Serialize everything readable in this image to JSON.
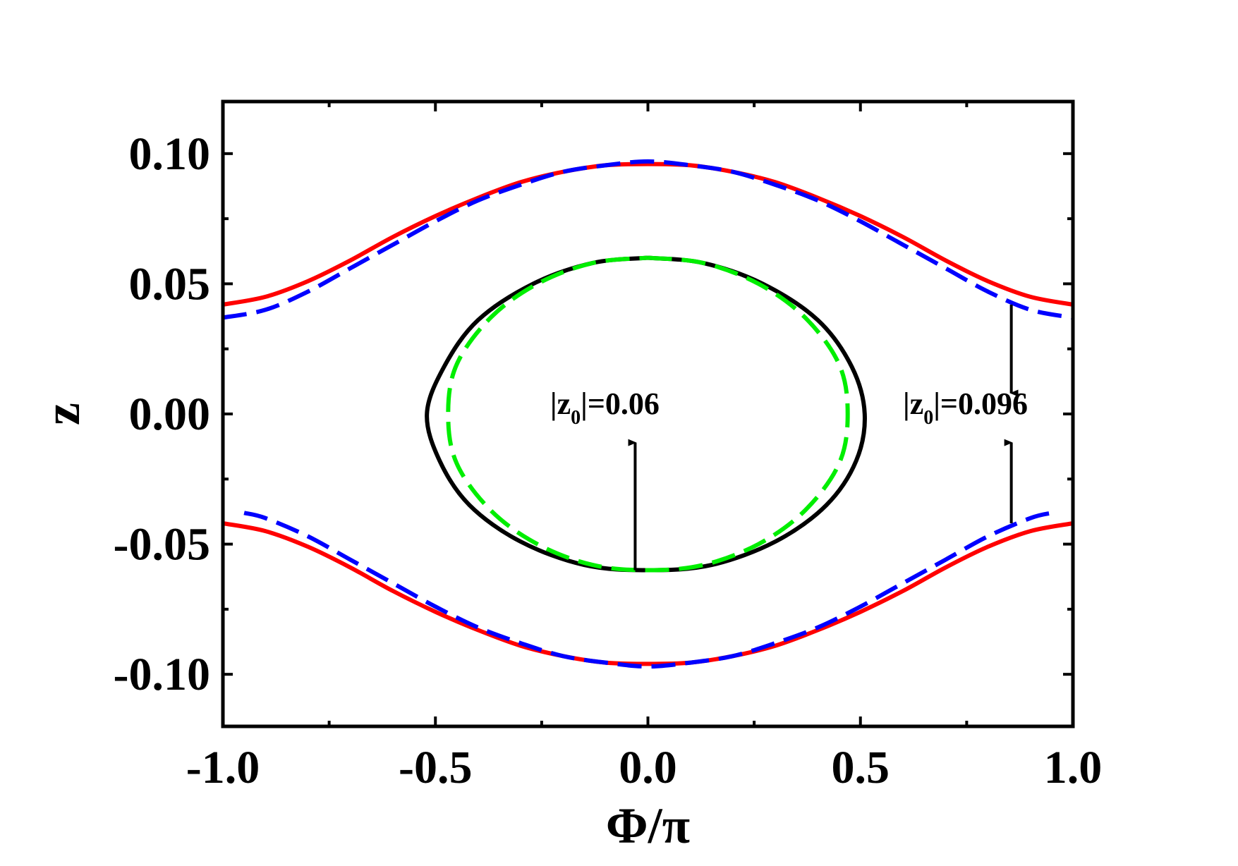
{
  "chart_data": {
    "type": "line",
    "title": "",
    "xlabel": "Φ/π",
    "ylabel": "z",
    "xlim": [
      -1.0,
      1.0
    ],
    "ylim": [
      -0.12,
      0.12
    ],
    "grid": false,
    "x_ticks": [
      {
        "value": -1.0,
        "label": "-1.0"
      },
      {
        "value": -0.5,
        "label": "-0.5"
      },
      {
        "value": 0.0,
        "label": "0.0"
      },
      {
        "value": 0.5,
        "label": "0.5"
      },
      {
        "value": 1.0,
        "label": "1.0"
      }
    ],
    "y_ticks": [
      {
        "value": 0.1,
        "label": "0.10"
      },
      {
        "value": 0.05,
        "label": "0.05"
      },
      {
        "value": 0.0,
        "label": "0.00"
      },
      {
        "value": -0.05,
        "label": "-0.05"
      },
      {
        "value": -0.1,
        "label": "-0.10"
      }
    ],
    "series": [
      {
        "color": "#ff0000",
        "style": "solid",
        "x": [
          -1.0,
          -0.9,
          -0.8,
          -0.7,
          -0.6,
          -0.5,
          -0.4,
          -0.3,
          -0.2,
          -0.1,
          0.0,
          0.1,
          0.2,
          0.3,
          0.4,
          0.5,
          0.6,
          0.7,
          0.8,
          0.9,
          1.0
        ],
        "y": [
          0.042,
          0.045,
          0.051,
          0.059,
          0.068,
          0.076,
          0.083,
          0.089,
          0.093,
          0.0955,
          0.096,
          0.0955,
          0.093,
          0.089,
          0.083,
          0.076,
          0.068,
          0.059,
          0.051,
          0.045,
          0.042
        ]
      },
      {
        "color": "#ff0000",
        "style": "solid",
        "x": [
          -1.0,
          -0.9,
          -0.8,
          -0.7,
          -0.6,
          -0.5,
          -0.4,
          -0.3,
          -0.2,
          -0.1,
          0.0,
          0.1,
          0.2,
          0.3,
          0.4,
          0.5,
          0.6,
          0.7,
          0.8,
          0.9,
          1.0
        ],
        "y": [
          -0.042,
          -0.045,
          -0.051,
          -0.059,
          -0.068,
          -0.076,
          -0.083,
          -0.089,
          -0.093,
          -0.0955,
          -0.096,
          -0.0955,
          -0.093,
          -0.089,
          -0.083,
          -0.076,
          -0.068,
          -0.059,
          -0.051,
          -0.045,
          -0.042
        ]
      },
      {
        "color": "#0000ff",
        "style": "dashed",
        "x": [
          -1.0,
          -0.9,
          -0.8,
          -0.7,
          -0.6,
          -0.5,
          -0.4,
          -0.3,
          -0.2,
          -0.1,
          0.0,
          0.1,
          0.2,
          0.3,
          0.4,
          0.5,
          0.6,
          0.7,
          0.8,
          0.9,
          1.0
        ],
        "y": [
          0.037,
          0.04,
          0.047,
          0.056,
          0.065,
          0.074,
          0.082,
          0.088,
          0.093,
          0.0955,
          0.097,
          0.0955,
          0.093,
          0.088,
          0.082,
          0.074,
          0.065,
          0.056,
          0.047,
          0.04,
          0.037
        ]
      },
      {
        "color": "#0000ff",
        "style": "dashed",
        "x": [
          -0.95,
          -0.9,
          -0.8,
          -0.7,
          -0.6,
          -0.5,
          -0.4,
          -0.3,
          -0.2,
          -0.1,
          0.0,
          0.1,
          0.2,
          0.3,
          0.4,
          0.5,
          0.6,
          0.7,
          0.8,
          0.9,
          0.95
        ],
        "y": [
          -0.038,
          -0.04,
          -0.047,
          -0.056,
          -0.065,
          -0.074,
          -0.082,
          -0.088,
          -0.093,
          -0.0955,
          -0.097,
          -0.0955,
          -0.093,
          -0.088,
          -0.082,
          -0.074,
          -0.065,
          -0.056,
          -0.047,
          -0.04,
          -0.038
        ]
      },
      {
        "color": "#000000",
        "style": "solid",
        "x": [
          0.0,
          0.13,
          0.27,
          0.4,
          0.48,
          0.51,
          0.49,
          0.42,
          0.3,
          0.15,
          0.0,
          -0.15,
          -0.3,
          -0.42,
          -0.49,
          -0.52,
          -0.48,
          -0.4,
          -0.27,
          -0.13,
          0.0
        ],
        "y": [
          0.06,
          0.058,
          0.05,
          0.036,
          0.018,
          0.0,
          -0.018,
          -0.035,
          -0.049,
          -0.058,
          -0.06,
          -0.058,
          -0.049,
          -0.035,
          -0.018,
          0.0,
          0.018,
          0.036,
          0.05,
          0.058,
          0.06
        ]
      },
      {
        "color": "#00ee00",
        "style": "dashed",
        "x": [
          0.0,
          0.13,
          0.26,
          0.37,
          0.45,
          0.47,
          0.45,
          0.37,
          0.26,
          0.13,
          0.0,
          -0.13,
          -0.26,
          -0.37,
          -0.45,
          -0.47,
          -0.45,
          -0.37,
          -0.26,
          -0.13,
          0.0
        ],
        "y": [
          0.06,
          0.058,
          0.05,
          0.037,
          0.019,
          0.0,
          -0.019,
          -0.037,
          -0.05,
          -0.058,
          -0.06,
          -0.058,
          -0.05,
          -0.037,
          -0.019,
          0.0,
          0.019,
          0.037,
          0.05,
          0.058,
          0.06
        ]
      }
    ],
    "annotations": [
      {
        "prefix": "|z",
        "sub": "0",
        "suffix": "|=0.06",
        "x": -0.23,
        "y": 0.0
      },
      {
        "prefix": "|z",
        "sub": "0",
        "suffix": "|=0.096",
        "x": 0.6,
        "y": 0.0
      }
    ],
    "arrows": [
      {
        "x": -0.03,
        "y_from": -0.06,
        "y_to": -0.011
      },
      {
        "x": 0.855,
        "y_from": 0.042,
        "y_to": 0.008
      },
      {
        "x": 0.855,
        "y_from": -0.042,
        "y_to": -0.011
      }
    ]
  }
}
